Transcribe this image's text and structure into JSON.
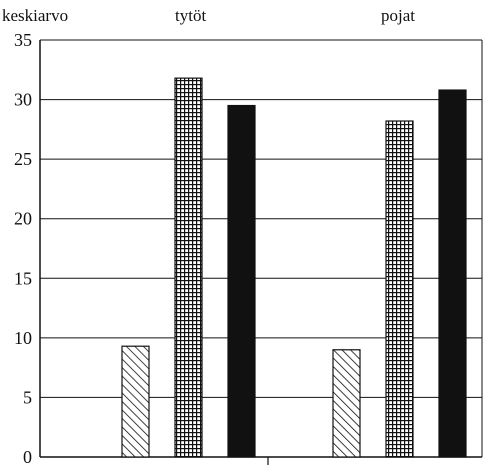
{
  "chart_data": {
    "type": "bar",
    "ylabel": "keskiarvo",
    "xlabel": "",
    "title": "",
    "categories": [
      "tytöt",
      "pojat"
    ],
    "ylim": [
      0,
      35
    ],
    "yticks": [
      0,
      5,
      10,
      15,
      20,
      25,
      30,
      35
    ],
    "grid": true,
    "series": [
      {
        "pattern": "diagonal-hatch",
        "values": [
          9.3,
          9.0
        ]
      },
      {
        "pattern": "crosshatch-grid",
        "values": [
          31.8,
          28.2
        ]
      },
      {
        "pattern": "solid",
        "values": [
          29.5,
          30.8
        ]
      }
    ],
    "colors": {
      "ink": "#111111",
      "background": "#ffffff"
    }
  }
}
